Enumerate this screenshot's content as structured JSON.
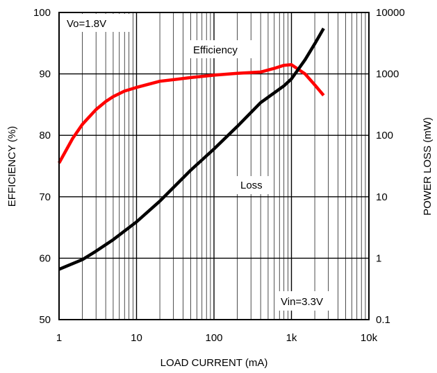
{
  "chart_data": {
    "type": "line",
    "title": "",
    "xlabel": "LOAD CURRENT (mA)",
    "ylabel_left": "EFFICIENCY (%)",
    "ylabel_right": "POWER LOSS (mW)",
    "x_scale": "log",
    "xlim": [
      1,
      10000
    ],
    "x_ticks": [
      "1",
      "10",
      "100",
      "1k",
      "10k"
    ],
    "ylim_left": [
      50,
      100
    ],
    "y_ticks_left": [
      "50",
      "60",
      "70",
      "80",
      "90",
      "100"
    ],
    "y_right_scale": "log",
    "ylim_right": [
      0.1,
      10000
    ],
    "y_ticks_right": [
      "0.1",
      "1",
      "10",
      "100",
      "1000",
      "10000"
    ],
    "grid": true,
    "legend": "none",
    "annotations": {
      "condition_top": "Vo=1.8V",
      "condition_bottom": "Vin=3.3V",
      "efficiency_label": "Efficiency",
      "loss_label": "Loss"
    },
    "series": [
      {
        "name": "Efficiency",
        "axis": "left",
        "color": "#ff0000",
        "x": [
          1,
          1.5,
          2,
          3,
          4,
          5,
          7,
          10,
          20,
          50,
          100,
          200,
          400,
          600,
          800,
          1000,
          1500,
          2000,
          2600
        ],
        "y": [
          75.5,
          79.5,
          81.8,
          84.2,
          85.5,
          86.3,
          87.2,
          87.8,
          88.8,
          89.4,
          89.8,
          90.1,
          90.3,
          90.9,
          91.4,
          91.5,
          90.0,
          88.2,
          86.5
        ]
      },
      {
        "name": "Loss",
        "axis": "right",
        "color": "#000000",
        "x": [
          1,
          2,
          3,
          5,
          10,
          20,
          50,
          100,
          200,
          400,
          800,
          1000,
          1500,
          2000,
          2600
        ],
        "y": [
          0.66,
          0.95,
          1.3,
          2.0,
          3.9,
          8.5,
          27,
          60,
          140,
          340,
          640,
          830,
          1700,
          3100,
          5500
        ]
      }
    ]
  }
}
